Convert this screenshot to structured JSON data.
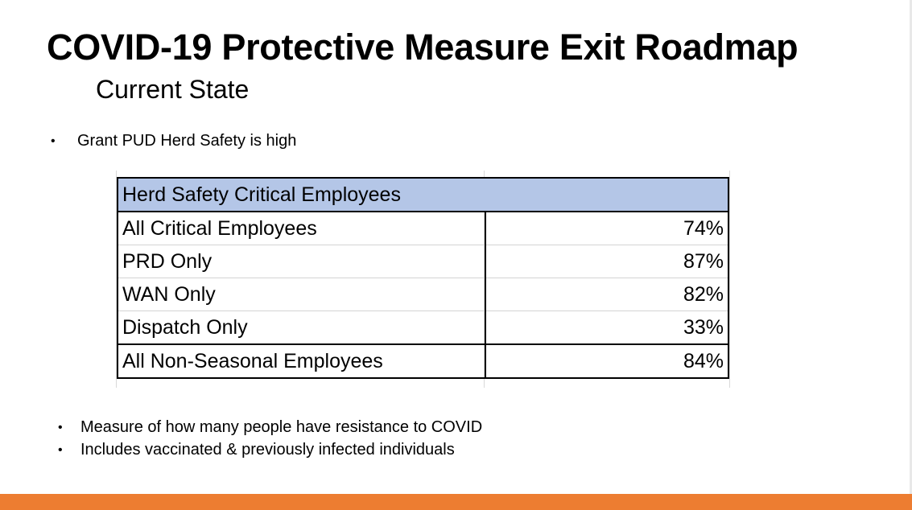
{
  "slide": {
    "title": "COVID-19 Protective Measure Exit Roadmap",
    "subtitle": "Current State",
    "bullet_top": "Grant PUD Herd Safety is high",
    "bullets_bottom": [
      "Measure of how many people have resistance to COVID",
      "Includes vaccinated & previously infected individuals"
    ],
    "bullet_glyph": "•"
  },
  "table": {
    "header": "Herd Safety Critical Employees",
    "rows": [
      {
        "label": "All Critical Employees",
        "value": "74%"
      },
      {
        "label": "PRD Only",
        "value": "87%"
      },
      {
        "label": "WAN Only",
        "value": "82%"
      },
      {
        "label": "Dispatch Only",
        "value": "33%"
      },
      {
        "label": "All  Non-Seasonal Employees",
        "value": "84%"
      }
    ],
    "header_color": "#b4c6e7"
  },
  "colors": {
    "footer_bar": "#ed7d31"
  }
}
